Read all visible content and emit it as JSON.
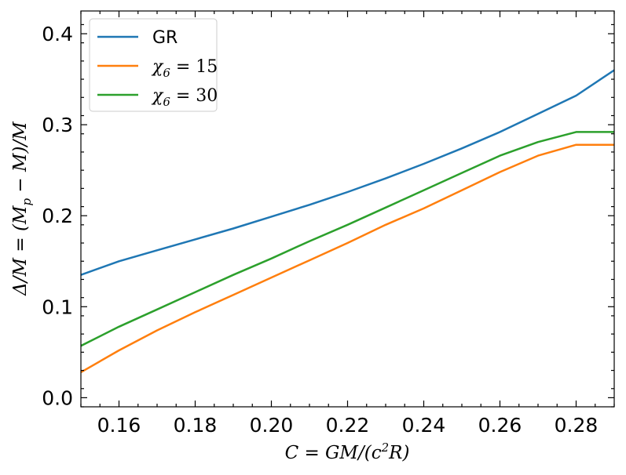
{
  "chart_data": {
    "type": "line",
    "xlabel": "C = GM/(c²R)",
    "ylabel": "Δ/M = (M_p − M)/M",
    "xlim": [
      0.15,
      0.29
    ],
    "ylim": [
      -0.01,
      0.425
    ],
    "xticks": [
      0.16,
      0.18,
      0.2,
      0.22,
      0.24,
      0.26,
      0.28
    ],
    "xtick_labels": [
      "0.16",
      "0.18",
      "0.20",
      "0.22",
      "0.24",
      "0.26",
      "0.28"
    ],
    "yticks": [
      0.0,
      0.1,
      0.2,
      0.3,
      0.4
    ],
    "ytick_labels": [
      "0.0",
      "0.1",
      "0.2",
      "0.3",
      "0.4"
    ],
    "grid": false,
    "legend_position": "top-left",
    "x": [
      0.15,
      0.16,
      0.17,
      0.18,
      0.19,
      0.2,
      0.21,
      0.22,
      0.23,
      0.24,
      0.25,
      0.26,
      0.27,
      0.28,
      0.29
    ],
    "series": [
      {
        "name": "GR",
        "legend_label": "GR",
        "color": "#1f77b4",
        "values": [
          0.135,
          0.15,
          0.162,
          0.174,
          0.186,
          0.199,
          0.212,
          0.226,
          0.241,
          0.257,
          0.274,
          0.292,
          0.312,
          0.332,
          0.36
        ]
      },
      {
        "name": "χ6 = 15",
        "legend_label_base": "χ",
        "legend_label_sub": "6",
        "legend_label_rest": " = 15",
        "color": "#ff7f0e",
        "values": [
          0.028,
          0.052,
          0.074,
          0.094,
          0.113,
          0.132,
          0.151,
          0.17,
          0.19,
          0.208,
          0.228,
          0.248,
          0.266,
          0.278,
          0.278
        ]
      },
      {
        "name": "χ6 = 30",
        "legend_label_base": "χ",
        "legend_label_sub": "6",
        "legend_label_rest": " = 30",
        "color": "#2ca02c",
        "values": [
          0.057,
          0.078,
          0.097,
          0.116,
          0.135,
          0.153,
          0.172,
          0.19,
          0.209,
          0.228,
          0.247,
          0.266,
          0.281,
          0.292,
          0.292
        ]
      }
    ]
  }
}
